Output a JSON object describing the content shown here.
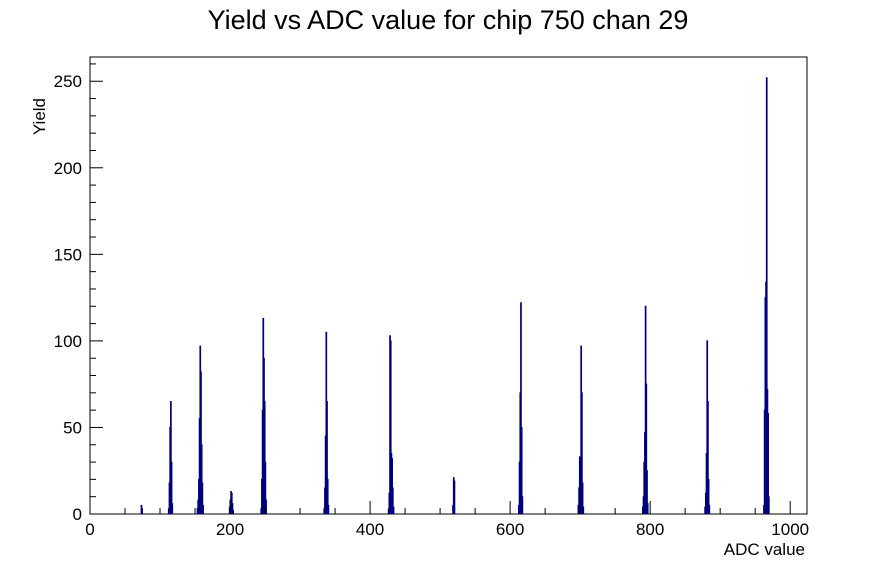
{
  "chart_data": {
    "type": "histogram",
    "title": "Yield vs ADC value for chip 750 chan 29",
    "xlabel": "ADC value",
    "ylabel": "Yield",
    "xlim": [
      0,
      1024
    ],
    "ylim": [
      0,
      264
    ],
    "x_ticks": [
      0,
      200,
      400,
      600,
      800,
      1000
    ],
    "y_ticks": [
      0,
      50,
      100,
      150,
      200,
      250
    ],
    "bin_width": 1,
    "line_color": "#00007f",
    "bins": [
      {
        "x": 73,
        "y": 5
      },
      {
        "x": 74,
        "y": 3
      },
      {
        "x": 112,
        "y": 3
      },
      {
        "x": 113,
        "y": 18
      },
      {
        "x": 114,
        "y": 50
      },
      {
        "x": 115,
        "y": 65
      },
      {
        "x": 116,
        "y": 30
      },
      {
        "x": 117,
        "y": 6
      },
      {
        "x": 153,
        "y": 3
      },
      {
        "x": 154,
        "y": 8
      },
      {
        "x": 155,
        "y": 20
      },
      {
        "x": 156,
        "y": 55
      },
      {
        "x": 157,
        "y": 97
      },
      {
        "x": 158,
        "y": 82
      },
      {
        "x": 159,
        "y": 40
      },
      {
        "x": 160,
        "y": 18
      },
      {
        "x": 161,
        "y": 5
      },
      {
        "x": 199,
        "y": 4
      },
      {
        "x": 200,
        "y": 8
      },
      {
        "x": 201,
        "y": 13
      },
      {
        "x": 202,
        "y": 12
      },
      {
        "x": 203,
        "y": 6
      },
      {
        "x": 204,
        "y": 2
      },
      {
        "x": 244,
        "y": 3
      },
      {
        "x": 245,
        "y": 20
      },
      {
        "x": 246,
        "y": 60
      },
      {
        "x": 247,
        "y": 113
      },
      {
        "x": 248,
        "y": 90
      },
      {
        "x": 249,
        "y": 65
      },
      {
        "x": 250,
        "y": 30
      },
      {
        "x": 251,
        "y": 8
      },
      {
        "x": 334,
        "y": 3
      },
      {
        "x": 335,
        "y": 15
      },
      {
        "x": 336,
        "y": 45
      },
      {
        "x": 337,
        "y": 105
      },
      {
        "x": 338,
        "y": 65
      },
      {
        "x": 339,
        "y": 20
      },
      {
        "x": 340,
        "y": 5
      },
      {
        "x": 426,
        "y": 3
      },
      {
        "x": 427,
        "y": 12
      },
      {
        "x": 428,
        "y": 103
      },
      {
        "x": 429,
        "y": 100
      },
      {
        "x": 430,
        "y": 35
      },
      {
        "x": 431,
        "y": 32
      },
      {
        "x": 432,
        "y": 15
      },
      {
        "x": 433,
        "y": 4
      },
      {
        "x": 518,
        "y": 5
      },
      {
        "x": 519,
        "y": 21
      },
      {
        "x": 520,
        "y": 19
      },
      {
        "x": 612,
        "y": 5
      },
      {
        "x": 613,
        "y": 30
      },
      {
        "x": 614,
        "y": 70
      },
      {
        "x": 615,
        "y": 122
      },
      {
        "x": 616,
        "y": 50
      },
      {
        "x": 617,
        "y": 10
      },
      {
        "x": 697,
        "y": 5
      },
      {
        "x": 698,
        "y": 15
      },
      {
        "x": 699,
        "y": 33
      },
      {
        "x": 700,
        "y": 28
      },
      {
        "x": 701,
        "y": 97
      },
      {
        "x": 702,
        "y": 70
      },
      {
        "x": 703,
        "y": 18
      },
      {
        "x": 704,
        "y": 4
      },
      {
        "x": 789,
        "y": 4
      },
      {
        "x": 790,
        "y": 10
      },
      {
        "x": 791,
        "y": 30
      },
      {
        "x": 792,
        "y": 47
      },
      {
        "x": 793,
        "y": 120
      },
      {
        "x": 794,
        "y": 75
      },
      {
        "x": 795,
        "y": 25
      },
      {
        "x": 796,
        "y": 6
      },
      {
        "x": 878,
        "y": 4
      },
      {
        "x": 879,
        "y": 12
      },
      {
        "x": 880,
        "y": 35
      },
      {
        "x": 881,
        "y": 100
      },
      {
        "x": 882,
        "y": 65
      },
      {
        "x": 883,
        "y": 20
      },
      {
        "x": 884,
        "y": 5
      },
      {
        "x": 962,
        "y": 5
      },
      {
        "x": 963,
        "y": 60
      },
      {
        "x": 964,
        "y": 125
      },
      {
        "x": 965,
        "y": 134
      },
      {
        "x": 966,
        "y": 252
      },
      {
        "x": 967,
        "y": 72
      },
      {
        "x": 968,
        "y": 58
      },
      {
        "x": 969,
        "y": 10
      }
    ]
  }
}
